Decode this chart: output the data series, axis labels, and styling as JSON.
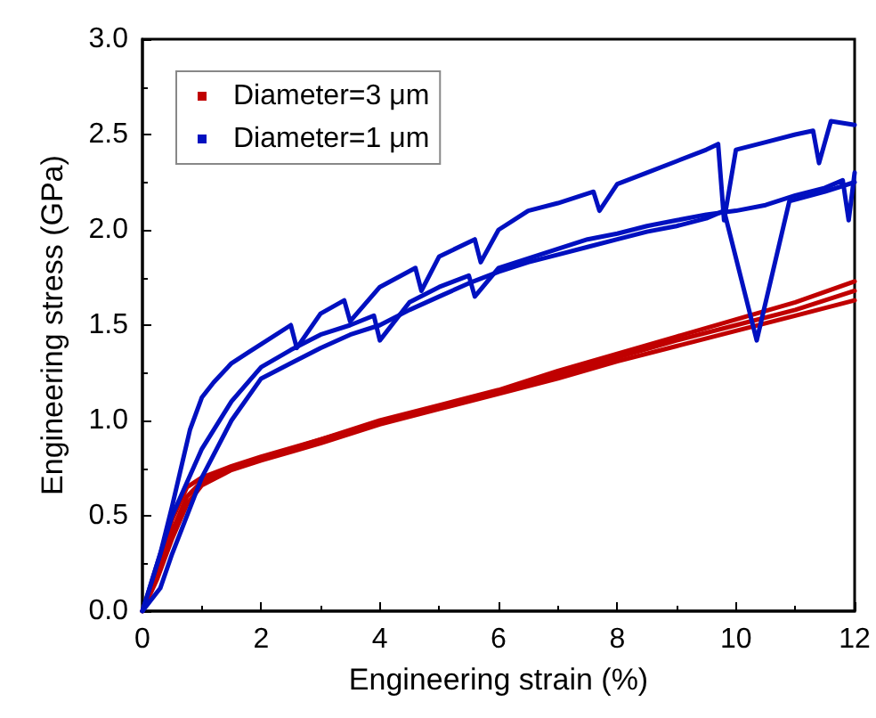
{
  "chart_data": {
    "type": "line",
    "xlabel": "Engineering strain (%)",
    "ylabel": "Engineering stress (GPa)",
    "xlim": [
      0,
      12
    ],
    "xticks": [
      0,
      2,
      4,
      6,
      8,
      10,
      12
    ],
    "ylim": [
      0,
      3
    ],
    "yticks": [
      {
        "value": 0,
        "label": "0.0"
      },
      {
        "value": 0.5,
        "label": "0.5"
      },
      {
        "value": 1,
        "label": "1.0"
      },
      {
        "value": 1.5,
        "label": "1.5"
      },
      {
        "value": 2,
        "label": "2.0"
      },
      {
        "value": 2.5,
        "label": "2.5"
      },
      {
        "value": 3,
        "label": "3.0"
      }
    ],
    "grid": false,
    "legend": "top left",
    "marker": "none",
    "line_style": "solid",
    "series": [
      {
        "name": "Diameter=3 μm",
        "color": "#c00000",
        "x": [
          0,
          0.25,
          0.5,
          0.75,
          1,
          1.5,
          2,
          3,
          4,
          5,
          6,
          7,
          8,
          9,
          10,
          11,
          12
        ],
        "values": [
          0,
          0.22,
          0.48,
          0.65,
          0.7,
          0.76,
          0.81,
          0.9,
          0.99,
          1.07,
          1.15,
          1.24,
          1.33,
          1.42,
          1.5,
          1.58,
          1.68
        ]
      },
      {
        "color": "#c00000",
        "x": [
          0,
          0.25,
          0.5,
          0.75,
          1,
          1.5,
          2,
          3,
          4,
          5,
          6,
          7,
          8,
          9,
          10,
          11,
          12
        ],
        "values": [
          0,
          0.2,
          0.42,
          0.6,
          0.68,
          0.75,
          0.8,
          0.9,
          1.0,
          1.08,
          1.16,
          1.26,
          1.35,
          1.44,
          1.53,
          1.62,
          1.73
        ]
      },
      {
        "color": "#c00000",
        "x": [
          0,
          0.25,
          0.5,
          0.75,
          1,
          1.5,
          2,
          3,
          4,
          5,
          6,
          7,
          8,
          9,
          10,
          11,
          12
        ],
        "values": [
          0,
          0.17,
          0.38,
          0.56,
          0.66,
          0.74,
          0.79,
          0.88,
          0.98,
          1.06,
          1.14,
          1.22,
          1.31,
          1.39,
          1.47,
          1.55,
          1.63
        ]
      },
      {
        "name": "Diameter=1 μm",
        "color": "#0010c0",
        "x": [
          0,
          0.3,
          0.5,
          0.8,
          1,
          1.2,
          1.5,
          1.8,
          2,
          2.5,
          2.6,
          3,
          3.4,
          3.5,
          4,
          4.6,
          4.7,
          5,
          5.6,
          5.7,
          6,
          6.5,
          7,
          7.6,
          7.7,
          8,
          8.5,
          9,
          9.5,
          9.7,
          9.8,
          10,
          10.5,
          11,
          11.3,
          11.4,
          11.6,
          12
        ],
        "values": [
          0,
          0.3,
          0.55,
          0.95,
          1.12,
          1.2,
          1.3,
          1.36,
          1.4,
          1.5,
          1.38,
          1.56,
          1.63,
          1.52,
          1.7,
          1.8,
          1.68,
          1.86,
          1.95,
          1.83,
          2.0,
          2.1,
          2.14,
          2.2,
          2.1,
          2.24,
          2.3,
          2.36,
          2.42,
          2.45,
          2.05,
          2.42,
          2.46,
          2.5,
          2.52,
          2.35,
          2.57,
          2.55
        ]
      },
      {
        "color": "#0010c0",
        "x": [
          0,
          0.3,
          0.5,
          1,
          1.5,
          2,
          2.5,
          3,
          3.5,
          3.9,
          4,
          4.5,
          5,
          5.5,
          5.6,
          6,
          6.5,
          7,
          7.5,
          8,
          8.5,
          9,
          9.5,
          10,
          10.5,
          11,
          11.5,
          11.8,
          11.9,
          12
        ],
        "values": [
          0,
          0.3,
          0.5,
          0.85,
          1.1,
          1.28,
          1.37,
          1.45,
          1.5,
          1.55,
          1.42,
          1.62,
          1.7,
          1.76,
          1.65,
          1.8,
          1.85,
          1.9,
          1.95,
          1.98,
          2.02,
          2.05,
          2.08,
          2.1,
          2.13,
          2.18,
          2.22,
          2.26,
          2.05,
          2.3
        ]
      },
      {
        "color": "#0010c0",
        "x": [
          0,
          0.3,
          0.5,
          1,
          1.5,
          2,
          2.5,
          3,
          3.5,
          4,
          4.5,
          5,
          5.5,
          6,
          6.5,
          7,
          7.5,
          8,
          8.5,
          9,
          9.5,
          9.8,
          10.35,
          10.9,
          11.5,
          12
        ],
        "values": [
          0,
          0.12,
          0.3,
          0.7,
          1.0,
          1.22,
          1.3,
          1.38,
          1.45,
          1.5,
          1.58,
          1.65,
          1.72,
          1.78,
          1.83,
          1.87,
          1.91,
          1.95,
          1.99,
          2.02,
          2.06,
          2.1,
          1.42,
          2.15,
          2.2,
          2.25
        ]
      }
    ]
  }
}
